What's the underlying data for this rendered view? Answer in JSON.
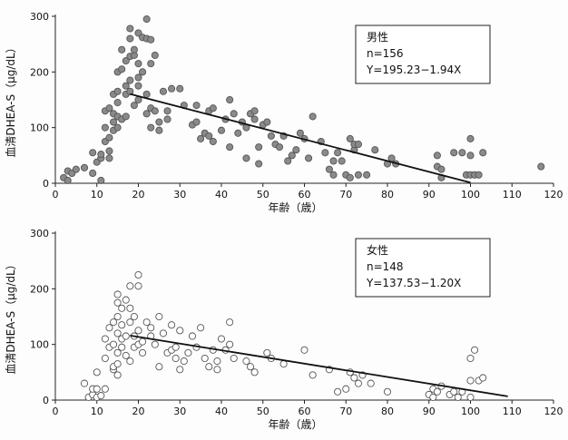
{
  "chart_data": [
    {
      "type": "scatter",
      "title": "",
      "xlabel": "年齢（歳）",
      "ylabel": "血清DHEA-S（μg/dL）",
      "xlim": [
        0,
        120
      ],
      "ylim": [
        0,
        300
      ],
      "xticks": [
        "0",
        "10",
        "20",
        "30",
        "40",
        "50",
        "60",
        "70",
        "80",
        "90",
        "100",
        "110",
        "120"
      ],
      "yticks": [
        "0",
        "100",
        "200",
        "300"
      ],
      "grid": false,
      "legend_position": "top-right",
      "legend": {
        "title": "男性",
        "n": "n=156",
        "equation": "Y=195.23−1.94X"
      },
      "marker": {
        "fill": "#8a8a8a",
        "stroke": "#555555"
      },
      "regression": {
        "intercept": 195.23,
        "slope": -1.94,
        "x_range": [
          18,
          100
        ]
      },
      "series": [
        {
          "points": [
            [
              2,
              10
            ],
            [
              3,
              5
            ],
            [
              3,
              22
            ],
            [
              4,
              18
            ],
            [
              5,
              25
            ],
            [
              7,
              28
            ],
            [
              9,
              18
            ],
            [
              9,
              55
            ],
            [
              10,
              38
            ],
            [
              11,
              5
            ],
            [
              11,
              45
            ],
            [
              11,
              52
            ],
            [
              12,
              75
            ],
            [
              12,
              100
            ],
            [
              12,
              130
            ],
            [
              13,
              45
            ],
            [
              13,
              58
            ],
            [
              13,
              82
            ],
            [
              13,
              135
            ],
            [
              14,
              95
            ],
            [
              14,
              110
            ],
            [
              14,
              125
            ],
            [
              14,
              160
            ],
            [
              15,
              100
            ],
            [
              15,
              120
            ],
            [
              15,
              145
            ],
            [
              15,
              165
            ],
            [
              15,
              200
            ],
            [
              16,
              115
            ],
            [
              16,
              205
            ],
            [
              16,
              240
            ],
            [
              17,
              120
            ],
            [
              17,
              160
            ],
            [
              17,
              175
            ],
            [
              17,
              220
            ],
            [
              18,
              165
            ],
            [
              18,
              185
            ],
            [
              18,
              228
            ],
            [
              18,
              260
            ],
            [
              18,
              278
            ],
            [
              19,
              140
            ],
            [
              19,
              230
            ],
            [
              19,
              240
            ],
            [
              20,
              150
            ],
            [
              20,
              175
            ],
            [
              20,
              190
            ],
            [
              20,
              215
            ],
            [
              20,
              270
            ],
            [
              21,
              200
            ],
            [
              21,
              262
            ],
            [
              22,
              260
            ],
            [
              22,
              295
            ],
            [
              22,
              160
            ],
            [
              22,
              125
            ],
            [
              23,
              215
            ],
            [
              23,
              258
            ],
            [
              23,
              135
            ],
            [
              23,
              100
            ],
            [
              24,
              230
            ],
            [
              24,
              130
            ],
            [
              25,
              110
            ],
            [
              25,
              95
            ],
            [
              26,
              165
            ],
            [
              27,
              130
            ],
            [
              27,
              115
            ],
            [
              28,
              170
            ],
            [
              30,
              170
            ],
            [
              31,
              140
            ],
            [
              33,
              105
            ],
            [
              34,
              140
            ],
            [
              34,
              110
            ],
            [
              35,
              80
            ],
            [
              36,
              90
            ],
            [
              37,
              130
            ],
            [
              37,
              85
            ],
            [
              38,
              135
            ],
            [
              38,
              75
            ],
            [
              40,
              95
            ],
            [
              41,
              115
            ],
            [
              42,
              150
            ],
            [
              42,
              65
            ],
            [
              43,
              125
            ],
            [
              44,
              90
            ],
            [
              45,
              110
            ],
            [
              46,
              100
            ],
            [
              46,
              45
            ],
            [
              47,
              125
            ],
            [
              48,
              130
            ],
            [
              48,
              115
            ],
            [
              49,
              65
            ],
            [
              49,
              35
            ],
            [
              50,
              105
            ],
            [
              51,
              110
            ],
            [
              52,
              85
            ],
            [
              53,
              70
            ],
            [
              54,
              65
            ],
            [
              55,
              85
            ],
            [
              56,
              40
            ],
            [
              57,
              50
            ],
            [
              58,
              60
            ],
            [
              59,
              90
            ],
            [
              60,
              80
            ],
            [
              61,
              45
            ],
            [
              62,
              120
            ],
            [
              64,
              75
            ],
            [
              65,
              55
            ],
            [
              66,
              25
            ],
            [
              67,
              40
            ],
            [
              67,
              15
            ],
            [
              68,
              55
            ],
            [
              69,
              40
            ],
            [
              70,
              15
            ],
            [
              71,
              80
            ],
            [
              71,
              10
            ],
            [
              72,
              60
            ],
            [
              72,
              70
            ],
            [
              73,
              70
            ],
            [
              73,
              15
            ],
            [
              75,
              15
            ],
            [
              77,
              60
            ],
            [
              80,
              35
            ],
            [
              81,
              45
            ],
            [
              82,
              35
            ],
            [
              92,
              50
            ],
            [
              92,
              30
            ],
            [
              93,
              25
            ],
            [
              93,
              10
            ],
            [
              96,
              55
            ],
            [
              98,
              55
            ],
            [
              99,
              15
            ],
            [
              100,
              80
            ],
            [
              100,
              50
            ],
            [
              100,
              15
            ],
            [
              101,
              15
            ],
            [
              102,
              15
            ],
            [
              103,
              55
            ],
            [
              117,
              30
            ]
          ]
        }
      ]
    },
    {
      "type": "scatter",
      "title": "",
      "xlabel": "年齢（歳）",
      "ylabel": "血清DHEA-S（μg/dL）",
      "xlim": [
        0,
        120
      ],
      "ylim": [
        0,
        300
      ],
      "xticks": [
        "0",
        "10",
        "20",
        "30",
        "40",
        "50",
        "60",
        "70",
        "80",
        "90",
        "100",
        "110",
        "120"
      ],
      "yticks": [
        "0",
        "100",
        "200",
        "300"
      ],
      "grid": false,
      "legend_position": "top-right",
      "legend": {
        "title": "女性",
        "n": "n=148",
        "equation": "Y=137.53−1.20X"
      },
      "marker": {
        "fill": "#ffffff",
        "stroke": "#555555"
      },
      "regression": {
        "intercept": 137.53,
        "slope": -1.2,
        "x_range": [
          18,
          109
        ]
      },
      "series": [
        {
          "points": [
            [
              7,
              30
            ],
            [
              8,
              5
            ],
            [
              9,
              10
            ],
            [
              9,
              20
            ],
            [
              10,
              5
            ],
            [
              10,
              20
            ],
            [
              10,
              50
            ],
            [
              11,
              8
            ],
            [
              12,
              20
            ],
            [
              12,
              75
            ],
            [
              12,
              110
            ],
            [
              13,
              95
            ],
            [
              13,
              130
            ],
            [
              14,
              55
            ],
            [
              14,
              60
            ],
            [
              14,
              100
            ],
            [
              14,
              140
            ],
            [
              15,
              45
            ],
            [
              15,
              65
            ],
            [
              15,
              85
            ],
            [
              15,
              120
            ],
            [
              15,
              150
            ],
            [
              15,
              175
            ],
            [
              15,
              190
            ],
            [
              16,
              95
            ],
            [
              16,
              110
            ],
            [
              16,
              135
            ],
            [
              16,
              165
            ],
            [
              17,
              80
            ],
            [
              17,
              115
            ],
            [
              17,
              180
            ],
            [
              18,
              70
            ],
            [
              18,
              140
            ],
            [
              18,
              165
            ],
            [
              18,
              205
            ],
            [
              19,
              95
            ],
            [
              19,
              115
            ],
            [
              19,
              150
            ],
            [
              20,
              100
            ],
            [
              20,
              125
            ],
            [
              20,
              205
            ],
            [
              20,
              225
            ],
            [
              21,
              85
            ],
            [
              21,
              105
            ],
            [
              22,
              140
            ],
            [
              23,
              115
            ],
            [
              23,
              130
            ],
            [
              24,
              100
            ],
            [
              25,
              60
            ],
            [
              25,
              150
            ],
            [
              26,
              120
            ],
            [
              27,
              85
            ],
            [
              28,
              90
            ],
            [
              28,
              135
            ],
            [
              29,
              75
            ],
            [
              29,
              95
            ],
            [
              30,
              55
            ],
            [
              30,
              125
            ],
            [
              31,
              70
            ],
            [
              32,
              85
            ],
            [
              33,
              115
            ],
            [
              34,
              95
            ],
            [
              35,
              130
            ],
            [
              36,
              75
            ],
            [
              37,
              60
            ],
            [
              38,
              90
            ],
            [
              39,
              55
            ],
            [
              39,
              70
            ],
            [
              40,
              110
            ],
            [
              41,
              90
            ],
            [
              42,
              100
            ],
            [
              42,
              140
            ],
            [
              43,
              75
            ],
            [
              46,
              70
            ],
            [
              47,
              60
            ],
            [
              48,
              50
            ],
            [
              51,
              85
            ],
            [
              52,
              75
            ],
            [
              55,
              65
            ],
            [
              60,
              90
            ],
            [
              62,
              45
            ],
            [
              66,
              55
            ],
            [
              68,
              15
            ],
            [
              70,
              20
            ],
            [
              71,
              50
            ],
            [
              72,
              40
            ],
            [
              73,
              30
            ],
            [
              74,
              45
            ],
            [
              76,
              30
            ],
            [
              80,
              15
            ],
            [
              90,
              10
            ],
            [
              91,
              5
            ],
            [
              91,
              20
            ],
            [
              92,
              15
            ],
            [
              93,
              25
            ],
            [
              95,
              10
            ],
            [
              96,
              15
            ],
            [
              97,
              5
            ],
            [
              98,
              15
            ],
            [
              100,
              5
            ],
            [
              100,
              35
            ],
            [
              100,
              75
            ],
            [
              101,
              90
            ],
            [
              102,
              35
            ],
            [
              103,
              40
            ]
          ]
        }
      ]
    }
  ]
}
